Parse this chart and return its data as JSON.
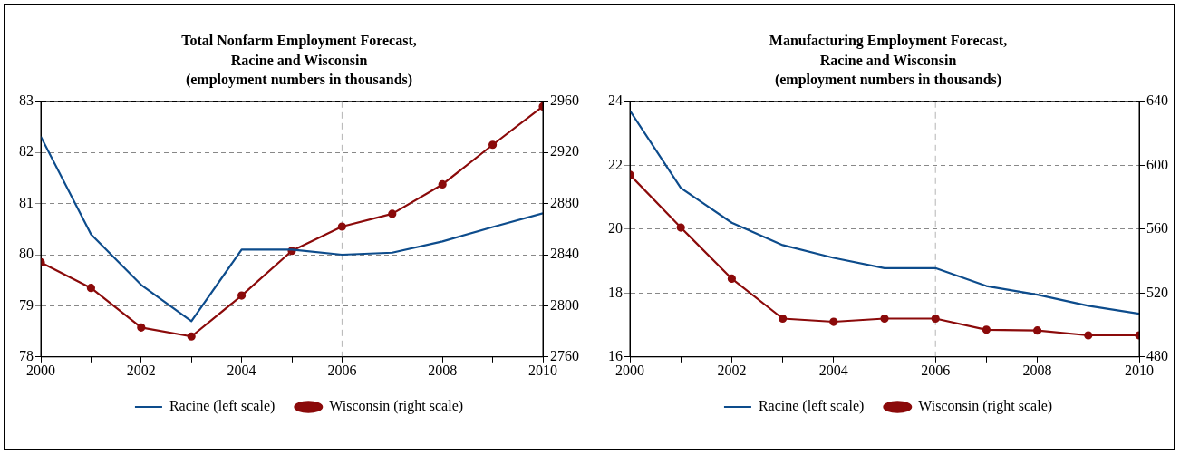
{
  "chart_data": [
    {
      "type": "line",
      "title": "Total Nonfarm Employment Forecast,\nRacine and Wisconsin\n(employment numbers in thousands)",
      "x": [
        2000,
        2001,
        2002,
        2003,
        2004,
        2005,
        2006,
        2007,
        2008,
        2009,
        2010
      ],
      "series": [
        {
          "name": "Racine (left scale)",
          "color": "#0d4c8c",
          "marker": "none",
          "values": [
            82.31,
            80.4,
            79.41,
            78.7,
            80.1,
            80.1,
            80.0,
            80.04,
            80.26,
            80.54,
            80.81
          ]
        },
        {
          "name": "Wisconsin (right scale)",
          "color": "#8b0a0a",
          "marker": "circle",
          "axis": "y2",
          "values": [
            2834,
            2814,
            2783,
            2776,
            2808,
            2843,
            2862,
            2872,
            2895,
            2926,
            2956
          ]
        }
      ],
      "xlim": [
        2000,
        2010
      ],
      "xticks": [
        2000,
        {
          "value": 2001,
          "label": null
        },
        2002,
        {
          "value": 2003,
          "label": null
        },
        2004,
        {
          "value": 2005,
          "label": null
        },
        2006,
        {
          "value": 2007,
          "label": null
        },
        2008,
        {
          "value": 2009,
          "label": null
        },
        2010
      ],
      "ylim": [
        78,
        83
      ],
      "yticks": [
        78,
        79,
        80,
        81,
        82,
        83
      ],
      "y2lim": [
        2760,
        2960
      ],
      "y2ticks": [
        2760,
        2800,
        2840,
        2880,
        2920,
        2960
      ],
      "ref_lines": [
        {
          "axis": "x",
          "value": 2006,
          "color": "#b4b4b4",
          "line_style": "dashed"
        }
      ],
      "grid": "y",
      "legend": "bottom"
    },
    {
      "type": "line",
      "title": "Manufacturing Employment Forecast,\nRacine and Wisconsin\n(employment numbers in thousands)",
      "x": [
        2000,
        2001,
        2002,
        2003,
        2004,
        2005,
        2006,
        2007,
        2008,
        2009,
        2010
      ],
      "series": [
        {
          "name": "Racine (left scale)",
          "color": "#0d4c8c",
          "marker": "none",
          "values": [
            23.71,
            21.29,
            20.2,
            19.5,
            19.1,
            18.78,
            18.78,
            18.22,
            17.95,
            17.6,
            17.35
          ]
        },
        {
          "name": "Wisconsin (right scale)",
          "color": "#8b0a0a",
          "marker": "circle",
          "axis": "y2",
          "values": [
            594,
            561,
            529,
            504,
            502,
            504,
            504,
            497,
            496.5,
            493.5,
            493.5
          ]
        }
      ],
      "xlim": [
        2000,
        2010
      ],
      "xticks": [
        2000,
        {
          "value": 2001,
          "label": null
        },
        2002,
        {
          "value": 2003,
          "label": null
        },
        2004,
        {
          "value": 2005,
          "label": null
        },
        2006,
        {
          "value": 2007,
          "label": null
        },
        2008,
        {
          "value": 2009,
          "label": null
        },
        2010
      ],
      "ylim": [
        16,
        24
      ],
      "yticks": [
        16,
        18,
        20,
        22,
        24
      ],
      "y2lim": [
        480,
        640
      ],
      "y2ticks": [
        480,
        520,
        560,
        600,
        640
      ],
      "ref_lines": [
        {
          "axis": "x",
          "value": 2006,
          "color": "#b4b4b4",
          "line_style": "dashed"
        }
      ],
      "grid": "y",
      "legend": "bottom"
    }
  ]
}
